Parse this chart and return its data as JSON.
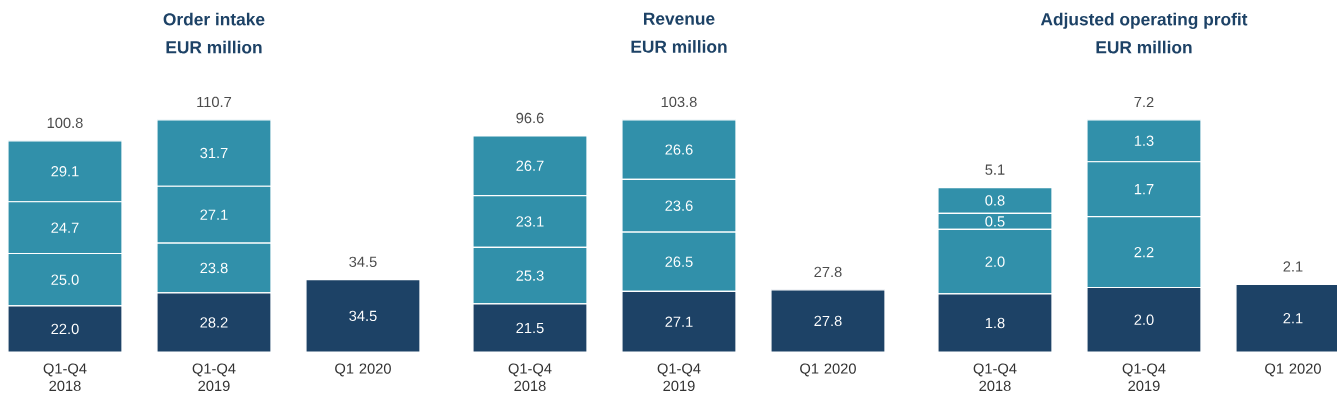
{
  "chart_data": [
    {
      "type": "bar",
      "stacked": true,
      "title": "Order intake",
      "subtitle": "EUR million",
      "categories": [
        "Q1-Q4 2018",
        "Q1-Q4 2019",
        "Q1 2020"
      ],
      "totals": [
        "100.8",
        "110.7",
        "34.5"
      ],
      "series": [
        {
          "color": "#1d4266",
          "values": [
            22.0,
            28.2,
            34.5
          ],
          "value_labels": [
            "22.0",
            "28.2",
            "34.5"
          ]
        },
        {
          "color": "#3190aa",
          "values": [
            25.0,
            23.8,
            null
          ],
          "value_labels": [
            "25.0",
            "23.8",
            null
          ]
        },
        {
          "color": "#3190aa",
          "values": [
            24.7,
            27.1,
            null
          ],
          "value_labels": [
            "24.7",
            "27.1",
            null
          ]
        },
        {
          "color": "#3190aa",
          "values": [
            29.1,
            31.7,
            null
          ],
          "value_labels": [
            "29.1",
            "31.7",
            null
          ]
        }
      ]
    },
    {
      "type": "bar",
      "stacked": true,
      "title": "Revenue",
      "subtitle": "EUR million",
      "categories": [
        "Q1-Q4 2018",
        "Q1-Q4 2019",
        "Q1 2020"
      ],
      "totals": [
        "96.6",
        "103.8",
        "27.8"
      ],
      "series": [
        {
          "color": "#1d4266",
          "values": [
            21.5,
            27.1,
            27.8
          ],
          "value_labels": [
            "21.5",
            "27.1",
            "27.8"
          ]
        },
        {
          "color": "#3190aa",
          "values": [
            25.3,
            26.5,
            null
          ],
          "value_labels": [
            "25.3",
            "26.5",
            null
          ]
        },
        {
          "color": "#3190aa",
          "values": [
            23.1,
            23.6,
            null
          ],
          "value_labels": [
            "23.1",
            "23.6",
            null
          ]
        },
        {
          "color": "#3190aa",
          "values": [
            26.7,
            26.6,
            null
          ],
          "value_labels": [
            "26.7",
            "26.6",
            null
          ]
        }
      ]
    },
    {
      "type": "bar",
      "stacked": true,
      "title": "Adjusted operating profit",
      "subtitle": "EUR million",
      "categories": [
        "Q1-Q4 2018",
        "Q1-Q4 2019",
        "Q1 2020"
      ],
      "totals": [
        "5.1",
        "7.2",
        "2.1"
      ],
      "series": [
        {
          "color": "#1d4266",
          "values": [
            1.8,
            2.0,
            2.1
          ],
          "value_labels": [
            "1.8",
            "2.0",
            "2.1"
          ]
        },
        {
          "color": "#3190aa",
          "values": [
            2.0,
            2.2,
            null
          ],
          "value_labels": [
            "2.0",
            "2.2",
            null
          ]
        },
        {
          "color": "#3190aa",
          "values": [
            0.5,
            1.7,
            null
          ],
          "value_labels": [
            "0.5",
            "1.7",
            null
          ]
        },
        {
          "color": "#3190aa",
          "values": [
            0.8,
            1.3,
            null
          ],
          "value_labels": [
            "0.8",
            "1.3",
            null
          ]
        }
      ]
    }
  ]
}
